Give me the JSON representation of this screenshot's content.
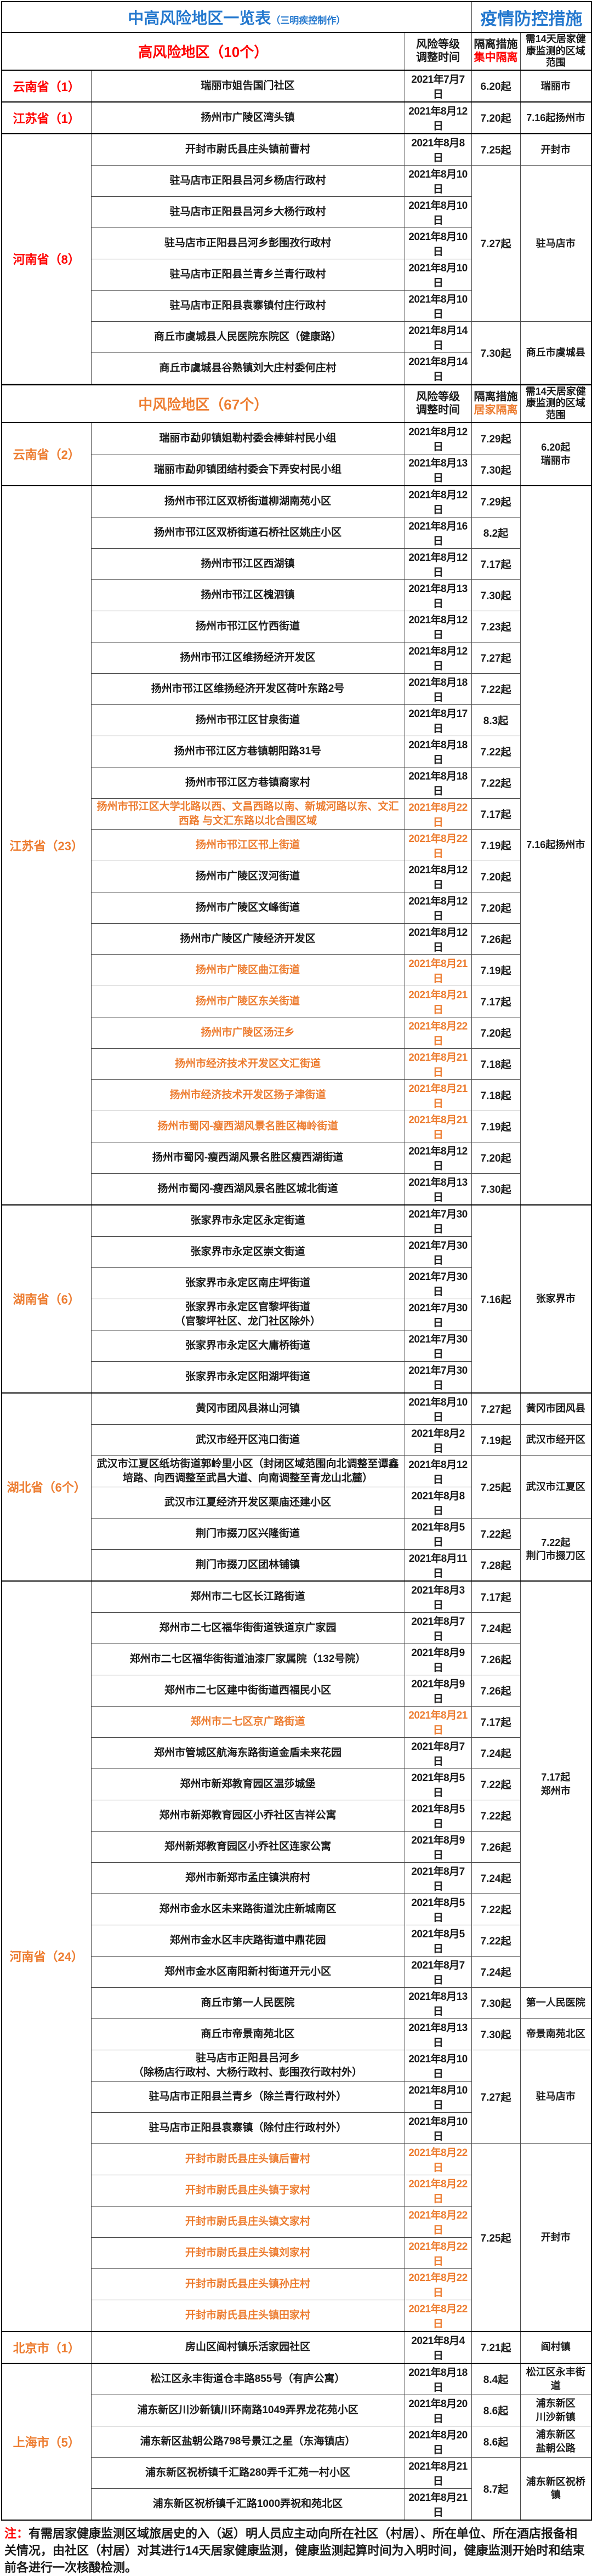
{
  "colors": {
    "blue": "#2478CE",
    "red": "#FF0000",
    "orange": "#ED7D31",
    "text": "#1a1a1a"
  },
  "title": {
    "main": "中高风险地区一览表",
    "sub": "（三明疾控制作）",
    "right": "疫情防控措施"
  },
  "columns": {
    "risk_header": "风险等级\n调整时间",
    "iso_header": "隔离措施",
    "region_header": "需14天居家健康监测的区域范围"
  },
  "sections": [
    {
      "id": "high",
      "label": "高风险地区（10个）",
      "iso_mode": "集中隔离",
      "accent": "#FF0000",
      "provinces": [
        {
          "label": "云南省（1）",
          "rows": [
            {
              "area": "瑞丽市姐告国门社区",
              "date": "2021年7月7日",
              "iso": "6.20起",
              "region": "瑞丽市"
            }
          ]
        },
        {
          "label": "江苏省（1）",
          "rows": [
            {
              "area": "扬州市广陵区湾头镇",
              "date": "2021年8月12日",
              "iso": "7.20起",
              "region": "7.16起扬州市"
            }
          ]
        },
        {
          "label": "河南省（8）",
          "rows": [
            {
              "area": "开封市尉氏县庄头镇前曹村",
              "date": "2021年8月8日",
              "iso": "7.25起",
              "region": "开封市"
            },
            {
              "area": "驻马店市正阳县吕河乡杨店行政村",
              "date": "2021年8月10日",
              "iso": "7.27起",
              "isoSpan": 5,
              "region": "驻马店市",
              "regionSpan": 5
            },
            {
              "area": "驻马店市正阳县吕河乡大杨行政村",
              "date": "2021年8月10日"
            },
            {
              "area": "驻马店市正阳县吕河乡彭围孜行政村",
              "date": "2021年8月10日"
            },
            {
              "area": "驻马店市正阳县兰青乡兰青行政村",
              "date": "2021年8月10日"
            },
            {
              "area": "驻马店市正阳县袁寨镇付庄行政村",
              "date": "2021年8月10日"
            },
            {
              "area": "商丘市虞城县人民医院东院区（健康路）",
              "date": "2021年8月14日",
              "iso": "7.30起",
              "isoSpan": 2,
              "region": "商丘市虞城县",
              "regionSpan": 2
            },
            {
              "area": "商丘市虞城县谷熟镇刘大庄村委何庄村",
              "date": "2021年8月14日"
            }
          ]
        }
      ]
    },
    {
      "id": "medium",
      "label": "中风险地区（67个）",
      "iso_mode": "居家隔离",
      "accent": "#ED7D31",
      "provinces": [
        {
          "label": "云南省（2）",
          "rows": [
            {
              "area": "瑞丽市勐卯镇姐勒村委会棒蚌村民小组",
              "date": "2021年8月12日",
              "iso": "7.29起",
              "region": "6.20起\n瑞丽市",
              "regionSpan": 2
            },
            {
              "area": "瑞丽市勐卯镇团结村委会下弄安村民小组",
              "date": "2021年8月13日",
              "iso": "7.30起"
            }
          ]
        },
        {
          "label": "江苏省（23）",
          "rows": [
            {
              "area": "扬州市邗江区双桥街道柳湖南苑小区",
              "date": "2021年8月12日",
              "iso": "7.29起",
              "region": "7.16起扬州市",
              "regionSpan": 23
            },
            {
              "area": "扬州市邗江区双桥街道石桥社区姚庄小区",
              "date": "2021年8月16日",
              "iso": "8.2起"
            },
            {
              "area": "扬州市邗江区西湖镇",
              "date": "2021年8月12日",
              "iso": "7.17起"
            },
            {
              "area": "扬州市邗江区槐泗镇",
              "date": "2021年8月13日",
              "iso": "7.30起"
            },
            {
              "area": "扬州市邗江区竹西街道",
              "date": "2021年8月12日",
              "iso": "7.23起"
            },
            {
              "area": "扬州市邗江区维扬经济开发区",
              "date": "2021年8月12日",
              "iso": "7.27起"
            },
            {
              "area": "扬州市邗江区维扬经济开发区荷叶东路2号",
              "date": "2021年8月18日",
              "iso": "7.22起"
            },
            {
              "area": "扬州市邗江区甘泉街道",
              "date": "2021年8月17日",
              "iso": "8.3起"
            },
            {
              "area": "扬州市邗江区方巷镇朝阳路31号",
              "date": "2021年8月18日",
              "iso": "7.22起"
            },
            {
              "area": "扬州市邗江区方巷镇裔家村",
              "date": "2021年8月18日",
              "iso": "7.22起"
            },
            {
              "area": "扬州市邗江区大学北路以西、文昌西路以南、新城河路以东、文汇西路 与文汇东路以北合围区域",
              "date": "2021年8月22日",
              "iso": "7.17起",
              "orange": true
            },
            {
              "area": "扬州市邗江区邗上街道",
              "date": "2021年8月22日",
              "iso": "7.19起",
              "orange": true
            },
            {
              "area": "扬州市广陵区汊河街道",
              "date": "2021年8月12日",
              "iso": "7.20起"
            },
            {
              "area": "扬州市广陵区文峰街道",
              "date": "2021年8月12日",
              "iso": "7.20起"
            },
            {
              "area": "扬州市广陵区广陵经济开发区",
              "date": "2021年8月12日",
              "iso": "7.26起"
            },
            {
              "area": "扬州市广陵区曲江街道",
              "date": "2021年8月21日",
              "iso": "7.19起",
              "orange": true
            },
            {
              "area": "扬州市广陵区东关街道",
              "date": "2021年8月21日",
              "iso": "7.17起",
              "orange": true
            },
            {
              "area": "扬州市广陵区汤汪乡",
              "date": "2021年8月22日",
              "iso": "7.20起",
              "orange": true
            },
            {
              "area": "扬州市经济技术开发区文汇街道",
              "date": "2021年8月21日",
              "iso": "7.18起",
              "orange": true
            },
            {
              "area": "扬州市经济技术开发区扬子津街道",
              "date": "2021年8月21日",
              "iso": "7.18起",
              "orange": true
            },
            {
              "area": "扬州市蜀冈-瘦西湖风景名胜区梅岭街道",
              "date": "2021年8月21日",
              "iso": "7.19起",
              "orange": true
            },
            {
              "area": "扬州市蜀冈-瘦西湖风景名胜区瘦西湖街道",
              "date": "2021年8月12日",
              "iso": "7.20起"
            },
            {
              "area": "扬州市蜀冈-瘦西湖风景名胜区城北街道",
              "date": "2021年8月13日",
              "iso": "7.30起"
            }
          ]
        },
        {
          "label": "湖南省（6）",
          "rows": [
            {
              "area": "张家界市永定区永定街道",
              "date": "2021年7月30日",
              "iso": "7.16起",
              "isoSpan": 6,
              "region": "张家界市",
              "regionSpan": 6
            },
            {
              "area": "张家界市永定区崇文街道",
              "date": "2021年7月30日"
            },
            {
              "area": "张家界市永定区南庄坪街道",
              "date": "2021年7月30日"
            },
            {
              "area": "张家界市永定区官黎坪街道\n（官黎坪社区、龙门社区除外）",
              "date": "2021年7月30日"
            },
            {
              "area": "张家界市永定区大庸桥街道",
              "date": "2021年7月30日"
            },
            {
              "area": "张家界市永定区阳湖坪街道",
              "date": "2021年7月30日"
            }
          ]
        },
        {
          "label": "湖北省（6个）",
          "rows": [
            {
              "area": "黄冈市团风县淋山河镇",
              "date": "2021年8月10日",
              "iso": "7.27起",
              "region": "黄冈市团风县"
            },
            {
              "area": "武汉市经开区沌口街道",
              "date": "2021年8月2日",
              "iso": "7.19起",
              "region": "武汉市经开区"
            },
            {
              "area": "武汉市江夏区纸坊街道郭岭里小区（封闭区域范围向北调整至谭鑫培路、向西调整至武昌大道、向南调整至青龙山北麓）",
              "date": "2021年8月12日",
              "iso": "7.25起",
              "isoSpan": 2,
              "region": "武汉市江夏区",
              "regionSpan": 2
            },
            {
              "area": "武汉市江夏经济开发区栗庙还建小区",
              "date": "2021年8月8日"
            },
            {
              "area": "荆门市掇刀区兴隆街道",
              "date": "2021年8月5日",
              "iso": "7.22起",
              "region": "7.22起\n荆门市掇刀区",
              "regionSpan": 2
            },
            {
              "area": "荆门市掇刀区团林铺镇",
              "date": "2021年8月11日",
              "iso": "7.28起"
            }
          ]
        },
        {
          "label": "河南省（24）",
          "rows": [
            {
              "area": "郑州市二七区长江路街道",
              "date": "2021年8月3日",
              "iso": "7.17起",
              "region": "7.17起\n郑州市",
              "regionSpan": 13
            },
            {
              "area": "郑州市二七区福华街街道铁道京广家园",
              "date": "2021年8月7日",
              "iso": "7.24起"
            },
            {
              "area": "郑州市二七区福华街街道油漆厂家属院（132号院）",
              "date": "2021年8月9日",
              "iso": "7.26起"
            },
            {
              "area": "郑州市二七区建中街街道西福民小区",
              "date": "2021年8月9日",
              "iso": "7.26起"
            },
            {
              "area": "郑州市二七区京广路街道",
              "date": "2021年8月21日",
              "iso": "7.17起",
              "orange": true
            },
            {
              "area": "郑州市管城区航海东路街道金盾未来花园",
              "date": "2021年8月7日",
              "iso": "7.24起"
            },
            {
              "area": "郑州市新郑教育园区温莎城堡",
              "date": "2021年8月5日",
              "iso": "7.22起"
            },
            {
              "area": "郑州市新郑教育园区小乔社区吉祥公寓",
              "date": "2021年8月5日",
              "iso": "7.22起"
            },
            {
              "area": "郑州新郑教育园区小乔社区连家公寓",
              "date": "2021年8月9日",
              "iso": "7.26起"
            },
            {
              "area": "郑州市新郑市孟庄镇洪府村",
              "date": "2021年8月7日",
              "iso": "7.24起"
            },
            {
              "area": "郑州市金水区未来路街道沈庄新城南区",
              "date": "2021年8月5日",
              "iso": "7.22起"
            },
            {
              "area": "郑州市金水区丰庆路街道中鼎花园",
              "date": "2021年8月5日",
              "iso": "7.22起"
            },
            {
              "area": "郑州市金水区南阳新村街道开元小区",
              "date": "2021年8月7日",
              "iso": "7.24起"
            },
            {
              "area": "商丘市第一人民医院",
              "date": "2021年8月13日",
              "iso": "7.30起",
              "region": "第一人民医院"
            },
            {
              "area": "商丘市帝景南苑北区",
              "date": "2021年8月13日",
              "iso": "7.30起",
              "region": "帝景南苑北区"
            },
            {
              "area": "驻马店市正阳县吕河乡\n（除杨店行政村、大杨行政村、彭围孜行政村外）",
              "date": "2021年8月10日",
              "iso": "7.27起",
              "isoSpan": 3,
              "region": "驻马店市",
              "regionSpan": 3
            },
            {
              "area": "驻马店市正阳县兰青乡（除兰青行政村外）",
              "date": "2021年8月10日"
            },
            {
              "area": "驻马店市正阳县袁寨镇（除付庄行政村外）",
              "date": "2021年8月10日"
            },
            {
              "area": "开封市尉氏县庄头镇后曹村",
              "date": "2021年8月22日",
              "iso": "7.25起",
              "isoSpan": 6,
              "region": "开封市",
              "regionSpan": 6,
              "orange": true
            },
            {
              "area": "开封市尉氏县庄头镇于家村",
              "date": "2021年8月22日",
              "orange": true
            },
            {
              "area": "开封市尉氏县庄头镇文家村",
              "date": "2021年8月22日",
              "orange": true
            },
            {
              "area": "开封市尉氏县庄头镇刘家村",
              "date": "2021年8月22日",
              "orange": true
            },
            {
              "area": "开封市尉氏县庄头镇孙庄村",
              "date": "2021年8月22日",
              "orange": true
            },
            {
              "area": "开封市尉氏县庄头镇田家村",
              "date": "2021年8月22日",
              "orange": true
            }
          ]
        },
        {
          "label": "北京市（1）",
          "rows": [
            {
              "area": "房山区阎村镇乐活家园社区",
              "date": "2021年8月4日",
              "iso": "7.21起",
              "region": "阎村镇"
            }
          ]
        },
        {
          "label": "上海市（5）",
          "rows": [
            {
              "area": "松江区永丰街道仓丰路855号（有庐公寓）",
              "date": "2021年8月18日",
              "iso": "8.4起",
              "region": "松江区永丰街道"
            },
            {
              "area": "浦东新区川沙新镇川环南路1049弄界龙花苑小区",
              "date": "2021年8月20日",
              "iso": "8.6起",
              "region": "浦东新区\n川沙新镇"
            },
            {
              "area": "浦东新区盐朝公路798号景江之星（东海镇店）",
              "date": "2021年8月20日",
              "iso": "8.6起",
              "region": "浦东新区\n盐朝公路"
            },
            {
              "area": "浦东新区祝桥镇千汇路280弄千汇苑一村小区",
              "date": "2021年8月21日",
              "iso": "8.7起",
              "isoSpan": 2,
              "region": "浦东新区祝桥镇",
              "regionSpan": 2
            },
            {
              "area": "浦东新区祝桥镇千汇路1000弄祝和苑北区",
              "date": "2021年8月21日"
            }
          ]
        }
      ]
    }
  ],
  "note": {
    "label": "注：",
    "text": "有需居家健康监测区域旅居史的入（返）明人员应主动向所在社区（村居）、所在单位、所在酒店报备相关情况，由社区（村居）对其进行14天居家健康监测，健康监测起算时间为入明时间，健康监测开始时和结束前各进行一次核酸检测。"
  }
}
